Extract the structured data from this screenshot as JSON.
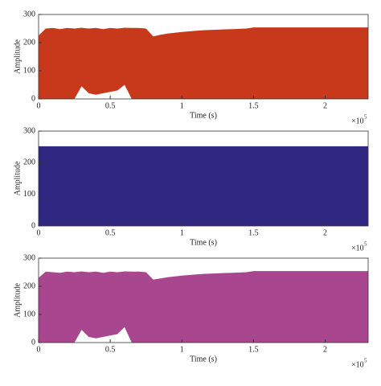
{
  "chart_data": [
    {
      "type": "area",
      "xlabel": "Time (s)",
      "ylabel": "Amplitude",
      "x_multiplier": "×10",
      "x_exponent": "5",
      "color": "#c8391c",
      "xlim": [
        0,
        230000
      ],
      "ylim": [
        0,
        300
      ],
      "xticks": [
        0,
        {
          "value": 50000,
          "label": "0.5"
        },
        {
          "value": 100000,
          "label": "1"
        },
        {
          "value": 150000,
          "label": "1.5"
        },
        {
          "value": 200000,
          "label": "2"
        }
      ],
      "yticks": [
        0,
        100,
        200,
        300
      ],
      "x": [
        0,
        5000,
        10000,
        15000,
        20000,
        25000,
        30000,
        35000,
        40000,
        45000,
        50000,
        55000,
        60000,
        65000,
        70000,
        75000,
        80000,
        85000,
        90000,
        95000,
        100000,
        105000,
        110000,
        115000,
        120000,
        125000,
        130000,
        135000,
        140000,
        145000,
        150000,
        155000,
        160000,
        165000,
        170000,
        175000,
        180000,
        185000,
        190000,
        195000,
        200000,
        205000,
        210000,
        215000,
        220000,
        225000,
        230000
      ],
      "upper": [
        225,
        250,
        252,
        248,
        252,
        250,
        253,
        250,
        252,
        248,
        252,
        250,
        253,
        252,
        252,
        250,
        222,
        228,
        232,
        235,
        238,
        240,
        242,
        244,
        245,
        246,
        247,
        248,
        249,
        250,
        254,
        254,
        254,
        254,
        254,
        254,
        254,
        254,
        254,
        254,
        254,
        254,
        254,
        254,
        254,
        254,
        254
      ],
      "lower": [
        0,
        0,
        0,
        0,
        0,
        0,
        45,
        20,
        15,
        20,
        25,
        30,
        50,
        0,
        0,
        0,
        0,
        0,
        0,
        0,
        0,
        0,
        0,
        0,
        0,
        0,
        0,
        0,
        0,
        0,
        0,
        0,
        0,
        0,
        0,
        0,
        0,
        0,
        0,
        0,
        0,
        0,
        0,
        0,
        0,
        0,
        0
      ]
    },
    {
      "type": "area",
      "xlabel": "Time (s)",
      "ylabel": "Amplitude",
      "x_multiplier": "×10",
      "x_exponent": "5",
      "color": "#302780",
      "xlim": [
        0,
        230000
      ],
      "ylim": [
        0,
        300
      ],
      "xticks": [
        0,
        {
          "value": 50000,
          "label": "0.5"
        },
        {
          "value": 100000,
          "label": "1"
        },
        {
          "value": 150000,
          "label": "1.5"
        },
        {
          "value": 200000,
          "label": "2"
        }
      ],
      "yticks": [
        0,
        100,
        200,
        300
      ],
      "x": [
        0,
        5000,
        10000,
        15000,
        20000,
        25000,
        30000,
        35000,
        40000,
        45000,
        50000,
        55000,
        60000,
        65000,
        70000,
        75000,
        80000,
        85000,
        90000,
        95000,
        100000,
        105000,
        110000,
        115000,
        120000,
        125000,
        130000,
        135000,
        140000,
        145000,
        150000,
        155000,
        160000,
        165000,
        170000,
        175000,
        180000,
        185000,
        190000,
        195000,
        200000,
        205000,
        210000,
        215000,
        220000,
        225000,
        230000
      ],
      "upper": [
        252,
        252,
        252,
        252,
        252,
        252,
        252,
        252,
        252,
        252,
        252,
        252,
        252,
        252,
        252,
        252,
        252,
        252,
        252,
        252,
        252,
        252,
        252,
        252,
        252,
        252,
        252,
        252,
        252,
        252,
        252,
        252,
        252,
        252,
        252,
        252,
        252,
        252,
        252,
        252,
        252,
        252,
        252,
        252,
        252,
        252,
        252
      ],
      "lower": [
        0,
        0,
        0,
        0,
        0,
        0,
        0,
        0,
        0,
        0,
        0,
        0,
        0,
        0,
        0,
        0,
        0,
        0,
        0,
        0,
        0,
        0,
        0,
        0,
        0,
        0,
        0,
        0,
        0,
        0,
        0,
        0,
        0,
        0,
        0,
        0,
        0,
        0,
        0,
        0,
        0,
        0,
        0,
        0,
        0,
        0,
        0
      ]
    },
    {
      "type": "area",
      "xlabel": "Time (s)",
      "ylabel": "Amplitude",
      "x_multiplier": "×10",
      "x_exponent": "5",
      "color": "#a8478f",
      "xlim": [
        0,
        230000
      ],
      "ylim": [
        0,
        300
      ],
      "xticks": [
        0,
        {
          "value": 50000,
          "label": "0.5"
        },
        {
          "value": 100000,
          "label": "1"
        },
        {
          "value": 150000,
          "label": "1.5"
        },
        {
          "value": 200000,
          "label": "2"
        }
      ],
      "yticks": [
        0,
        100,
        200,
        300
      ],
      "x": [
        0,
        5000,
        10000,
        15000,
        20000,
        25000,
        30000,
        35000,
        40000,
        45000,
        50000,
        55000,
        60000,
        65000,
        70000,
        75000,
        80000,
        85000,
        90000,
        95000,
        100000,
        105000,
        110000,
        115000,
        120000,
        125000,
        130000,
        135000,
        140000,
        145000,
        150000,
        155000,
        160000,
        165000,
        170000,
        175000,
        180000,
        185000,
        190000,
        195000,
        200000,
        205000,
        210000,
        215000,
        220000,
        225000,
        230000
      ],
      "upper": [
        230,
        252,
        250,
        248,
        252,
        250,
        253,
        250,
        252,
        248,
        252,
        250,
        253,
        252,
        252,
        250,
        224,
        228,
        232,
        235,
        238,
        240,
        242,
        244,
        245,
        246,
        247,
        248,
        249,
        250,
        254,
        254,
        254,
        254,
        254,
        254,
        254,
        254,
        254,
        254,
        254,
        254,
        254,
        254,
        254,
        254,
        254
      ],
      "lower": [
        0,
        0,
        0,
        0,
        0,
        0,
        45,
        20,
        15,
        20,
        25,
        30,
        55,
        0,
        0,
        0,
        0,
        0,
        0,
        0,
        0,
        0,
        0,
        0,
        0,
        0,
        0,
        0,
        0,
        0,
        0,
        0,
        0,
        0,
        0,
        0,
        0,
        0,
        0,
        0,
        0,
        0,
        0,
        0,
        0,
        0,
        0
      ]
    }
  ]
}
